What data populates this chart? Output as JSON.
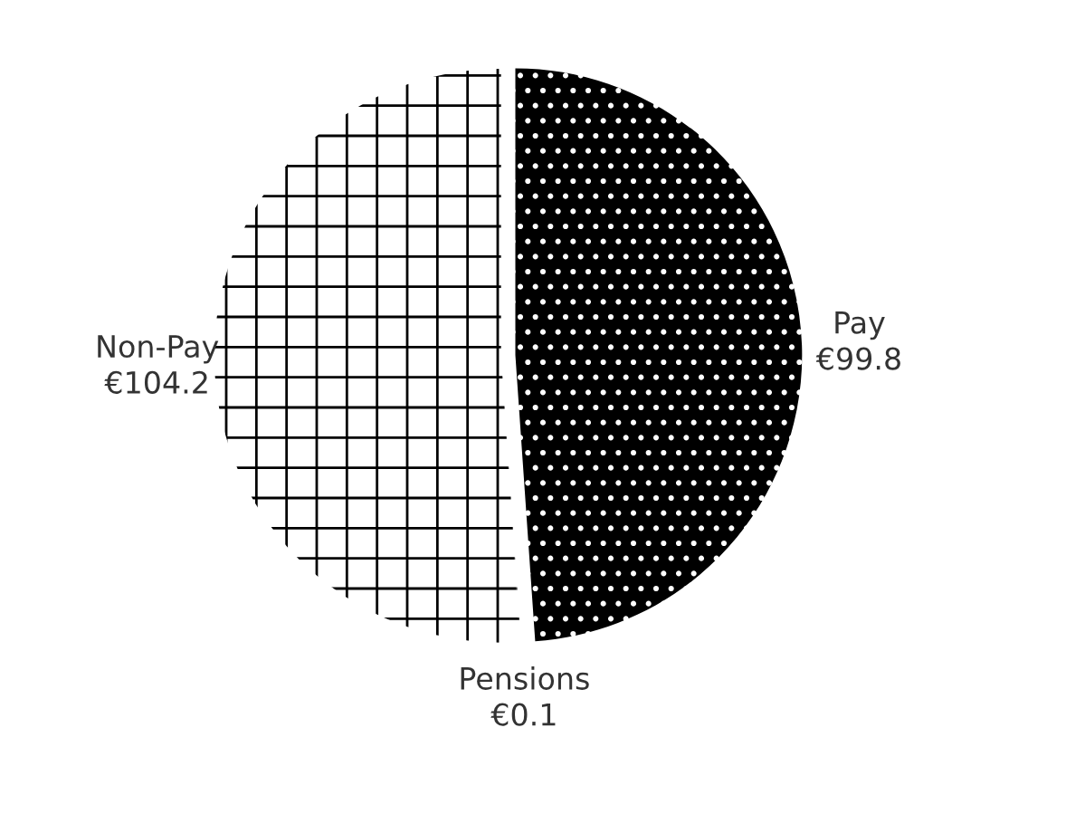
{
  "chart_data": {
    "type": "pie",
    "categories": [
      "Pay",
      "Pensions",
      "Non-Pay"
    ],
    "values": [
      99.8,
      0.1,
      104.2
    ],
    "value_labels": [
      "€99.8",
      "€0.1",
      "€104.2"
    ],
    "colors": [
      "#000000",
      "#ffffff",
      "#ffffff"
    ],
    "legend": false
  }
}
